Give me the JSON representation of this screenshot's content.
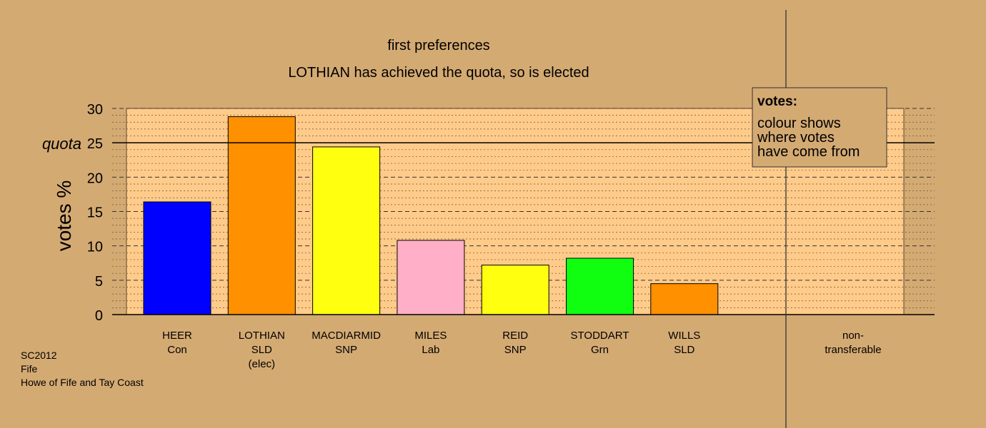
{
  "chart_data": {
    "type": "bar",
    "title": "first preferences",
    "subtitle": "LOTHIAN has achieved the quota, so is elected",
    "ylabel": "votes %",
    "ylim": [
      0,
      30
    ],
    "yticks": [
      0,
      5,
      10,
      15,
      20,
      25,
      30
    ],
    "quota": 25,
    "quota_label": "quota",
    "categories": [
      {
        "name": "HEER",
        "party": "Con",
        "note": ""
      },
      {
        "name": "LOTHIAN",
        "party": "SLD",
        "note": "(elec)"
      },
      {
        "name": "MACDIARMID",
        "party": "SNP",
        "note": ""
      },
      {
        "name": "MILES",
        "party": "Lab",
        "note": ""
      },
      {
        "name": "REID",
        "party": "SNP",
        "note": ""
      },
      {
        "name": "STODDART",
        "party": "Grn",
        "note": ""
      },
      {
        "name": "WILLS",
        "party": "SLD",
        "note": ""
      }
    ],
    "values": [
      16.4,
      28.8,
      24.4,
      10.8,
      7.2,
      8.2,
      4.5
    ],
    "colors": [
      "#0000ff",
      "#ff9000",
      "#ffff10",
      "#ffb0c8",
      "#ffff10",
      "#10ff10",
      "#ff9000"
    ],
    "nontransferable": {
      "label_line1": "non-",
      "label_line2": "transferable",
      "value": 0
    },
    "legend": {
      "title": "votes:",
      "lines": [
        "colour shows",
        "where votes",
        "have come from"
      ],
      "position": "top-right"
    },
    "grid": true
  },
  "footer": {
    "lines": [
      "SC2012",
      "Fife",
      "Howe of Fife and Tay Coast"
    ]
  }
}
